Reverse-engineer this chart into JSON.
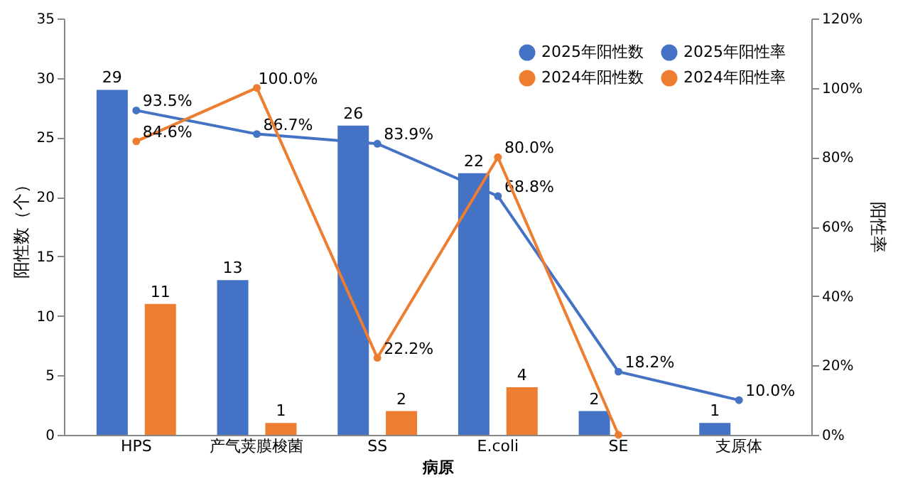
{
  "chart_data": {
    "type": "bar",
    "xlabel": "病原",
    "ylabel": "阳性数（个）",
    "y2label": "阳性率",
    "categories": [
      "HPS",
      "产气荚膜梭菌",
      "SS",
      "E.coli",
      "SE",
      "支原体"
    ],
    "ylim": [
      0,
      35
    ],
    "yticks": [
      0,
      5,
      10,
      15,
      20,
      25,
      30,
      35
    ],
    "y2lim": [
      0,
      120
    ],
    "y2ticks": [
      {
        "value": 0,
        "label": "0%"
      },
      {
        "value": 20,
        "label": "20%"
      },
      {
        "value": 40,
        "label": "40%"
      },
      {
        "value": 60,
        "label": "60%"
      },
      {
        "value": 80,
        "label": "80%"
      },
      {
        "value": 100,
        "label": "100%"
      },
      {
        "value": 120,
        "label": "120%"
      }
    ],
    "grid": false,
    "legend": "top right",
    "marker": "circle",
    "series": [
      {
        "name": "2025年阳性数",
        "color": "#4472c4",
        "values": [
          29,
          13,
          26,
          22,
          2,
          1
        ],
        "value_labels": [
          "29",
          "13",
          "26",
          "22",
          "2",
          "1"
        ]
      },
      {
        "name": "2024年阳性数",
        "color": "#ed7d31",
        "values": [
          11,
          1,
          2,
          4,
          null,
          null
        ],
        "value_labels": [
          "11",
          "1",
          "2",
          "4",
          null,
          null
        ]
      },
      {
        "name": "2025年阳性率",
        "type": "line",
        "axis": "y2",
        "color": "#4472c4",
        "values": [
          93.5,
          86.7,
          83.9,
          68.8,
          18.2,
          10.0
        ],
        "value_labels": [
          "93.5%",
          "86.7%",
          "83.9%",
          "68.8%",
          "18.2%",
          "10.0%"
        ]
      },
      {
        "name": "2024年阳性率",
        "type": "line",
        "axis": "y2",
        "color": "#ed7d31",
        "values": [
          84.6,
          100.0,
          22.2,
          80.0,
          0,
          null
        ],
        "value_labels": [
          "84.6%",
          "100.0%",
          "22.2%",
          "80.0%",
          null,
          null
        ]
      }
    ]
  }
}
